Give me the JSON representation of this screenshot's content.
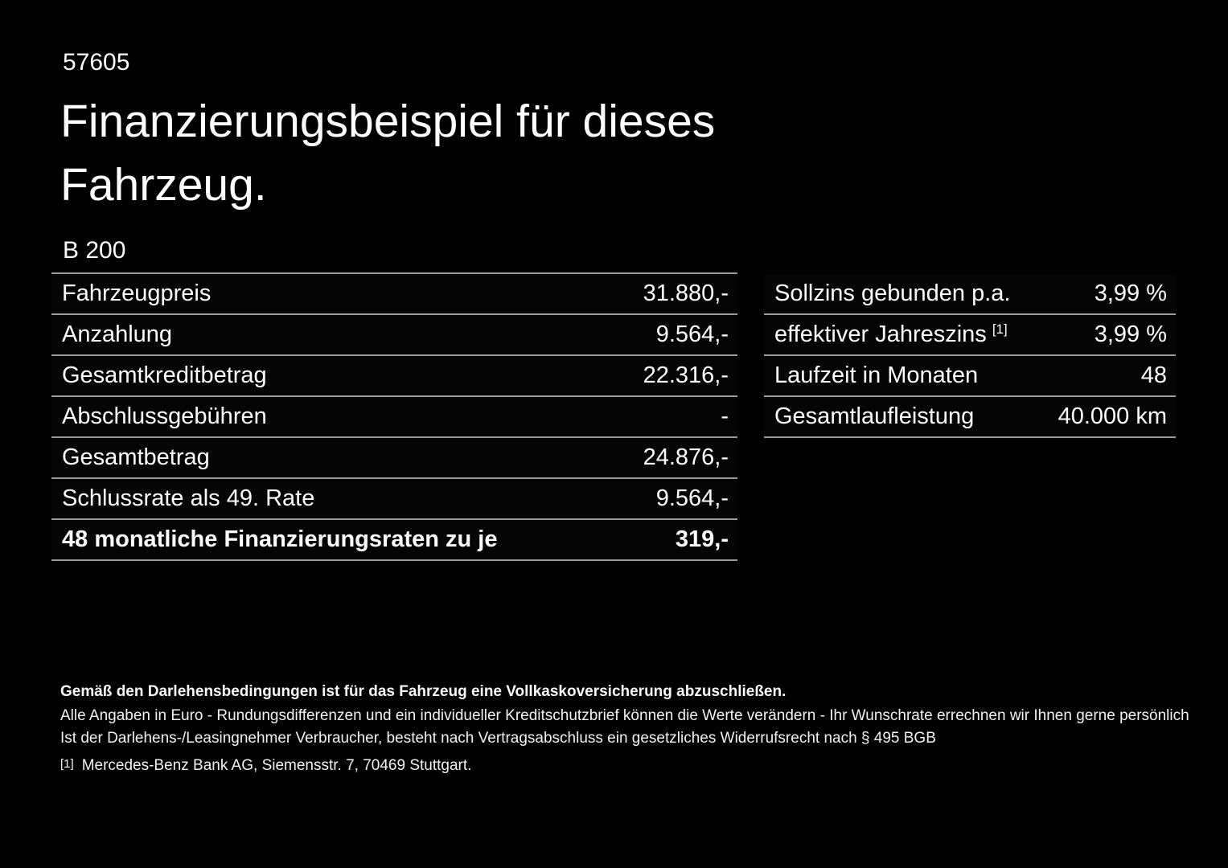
{
  "page": {
    "id_number": "57605",
    "title": "Finanzierungsbeispiel für dieses Fahrzeug.",
    "model": "B 200"
  },
  "left_table": {
    "rows": [
      {
        "label": "Fahrzeugpreis",
        "value": "31.880,-"
      },
      {
        "label": "Anzahlung",
        "value": "9.564,-"
      },
      {
        "label": "Gesamtkreditbetrag",
        "value": "22.316,-"
      },
      {
        "label": "Abschlussgebühren",
        "value": "-"
      },
      {
        "label": "Gesamtbetrag",
        "value": "24.876,-"
      },
      {
        "label": "Schlussrate als 49. Rate",
        "value": "9.564,-"
      },
      {
        "label": "48 monatliche Finanzierungsraten zu je",
        "value": "319,-"
      }
    ]
  },
  "right_table": {
    "rows": [
      {
        "label": "Sollzins gebunden p.a.",
        "value": "3,99 %"
      },
      {
        "label": "effektiver Jahreszins",
        "sup": "[1]",
        "value": "3,99 %"
      },
      {
        "label": "Laufzeit in Monaten",
        "value": "48"
      },
      {
        "label": "Gesamtlaufleistung",
        "value": "40.000 km"
      }
    ]
  },
  "footer": {
    "line1": "Gemäß den Darlehensbedingungen ist für das Fahrzeug eine Vollkaskoversicherung abzuschließen.",
    "line2": "Alle Angaben in Euro - Rundungsdifferenzen und ein individueller Kreditschutzbrief können die Werte verändern - Ihr Wunschrate errechnen wir Ihnen gerne persönlich",
    "line3": "Ist der Darlehens-/Leasingnehmer Verbraucher, besteht nach Vertragsabschluss ein gesetzliches Widerrufsrecht nach § 495 BGB",
    "footnote_marker": "[1]",
    "footnote_text": "Mercedes-Benz Bank AG, Siemensstr. 7, 70469 Stuttgart."
  },
  "colors": {
    "background": "#000000",
    "text": "#ffffff",
    "divider": "#9c9c9c"
  }
}
